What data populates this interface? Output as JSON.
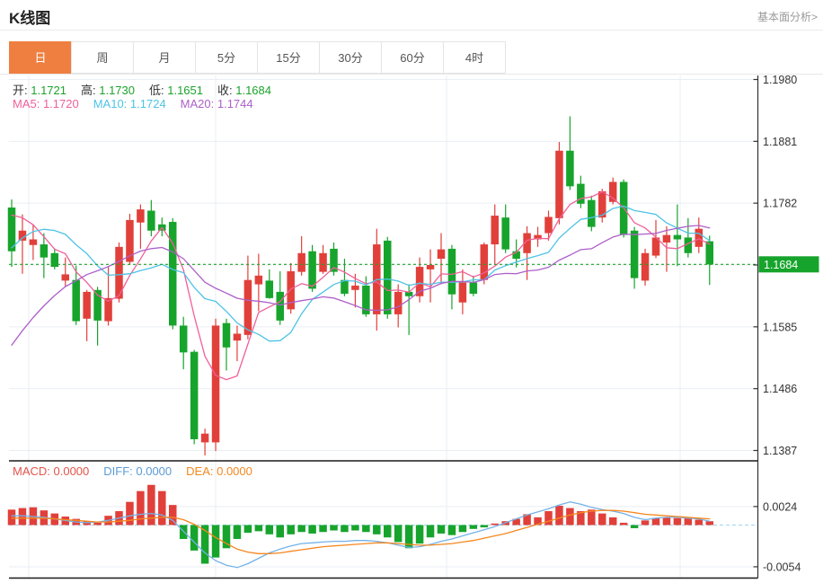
{
  "header": {
    "title": "K线图",
    "link": "基本面分析>"
  },
  "tabs": {
    "items": [
      "日",
      "周",
      "月",
      "5分",
      "15分",
      "30分",
      "60分",
      "4时"
    ],
    "active_index": 0
  },
  "legend": {
    "ohlc": [
      {
        "label": "开:",
        "value": "1.1721"
      },
      {
        "label": "高:",
        "value": "1.1730"
      },
      {
        "label": "低:",
        "value": "1.1651"
      },
      {
        "label": "收:",
        "value": "1.1684"
      }
    ],
    "ma": [
      {
        "label": "MA5:",
        "value": "1.1720",
        "color": "#f0609a"
      },
      {
        "label": "MA10:",
        "value": "1.1724",
        "color": "#4ec3e6"
      },
      {
        "label": "MA20:",
        "value": "1.1744",
        "color": "#ad5fc9"
      }
    ],
    "macd": [
      {
        "label": "MACD:",
        "value": "0.0000",
        "color": "#e2544b"
      },
      {
        "label": "DIFF:",
        "value": "0.0000",
        "color": "#5b9bd5"
      },
      {
        "label": "DEA:",
        "value": "0.0000",
        "color": "#f5871f"
      }
    ]
  },
  "colors": {
    "up": "#e1403a",
    "down": "#17a42c",
    "ma5": "#f0609a",
    "ma10": "#4ec3e6",
    "ma20": "#ad5fc9",
    "diff_line": "#74b2e8",
    "dea_line": "#f5871f",
    "price_line": "#21a52b",
    "badge_bg": "#17a42c",
    "badge_text": "#ffffff",
    "grid": "#e9eef4",
    "axis_dark": "#333333",
    "tick_text": "#333333",
    "value_green": "#1ba32b",
    "tab_active": "#ee7f40",
    "zero_dash": "#9fd4ef"
  },
  "chart_data": {
    "type": "candlestick",
    "title": "K线图",
    "y_axis": {
      "ticks": [
        "1.1980",
        "1.1881",
        "1.1782",
        "1.1684",
        "1.1585",
        "1.1486",
        "1.1387"
      ],
      "range": [
        1.1387,
        1.198
      ]
    },
    "price_marker": {
      "label": "1.1684",
      "value": 1.1684
    },
    "candles_ohlc": [
      [
        1.1775,
        1.1788,
        1.168,
        1.1705
      ],
      [
        1.1722,
        1.1764,
        1.1669,
        1.1738
      ],
      [
        1.1715,
        1.1748,
        1.1691,
        1.1724
      ],
      [
        1.1716,
        1.1734,
        1.1662,
        1.1695
      ],
      [
        1.1702,
        1.1709,
        1.1676,
        1.168
      ],
      [
        1.1658,
        1.1695,
        1.1648,
        1.1668
      ],
      [
        1.1659,
        1.1682,
        1.1587,
        1.1593
      ],
      [
        1.1597,
        1.1643,
        1.1561,
        1.164
      ],
      [
        1.1643,
        1.1648,
        1.1554,
        1.1594
      ],
      [
        1.1593,
        1.168,
        1.1586,
        1.163
      ],
      [
        1.1629,
        1.1719,
        1.1623,
        1.1712
      ],
      [
        1.1688,
        1.1765,
        1.1683,
        1.1755
      ],
      [
        1.1751,
        1.178,
        1.1709,
        1.1772
      ],
      [
        1.177,
        1.1787,
        1.1729,
        1.1738
      ],
      [
        1.1748,
        1.1759,
        1.1729,
        1.1738
      ],
      [
        1.1752,
        1.1758,
        1.158,
        1.1586
      ],
      [
        1.1586,
        1.16,
        1.1516,
        1.1543
      ],
      [
        1.1544,
        1.1547,
        1.1396,
        1.1404
      ],
      [
        1.1399,
        1.1421,
        1.1378,
        1.1413
      ],
      [
        1.1399,
        1.1597,
        1.1385,
        1.1586
      ],
      [
        1.159,
        1.1597,
        1.1514,
        1.1551
      ],
      [
        1.1562,
        1.1586,
        1.1529,
        1.1573
      ],
      [
        1.1571,
        1.1698,
        1.1564,
        1.1659
      ],
      [
        1.1652,
        1.1701,
        1.1609,
        1.1666
      ],
      [
        1.1658,
        1.1676,
        1.1629,
        1.163
      ],
      [
        1.164,
        1.1673,
        1.1587,
        1.1594
      ],
      [
        1.1612,
        1.1686,
        1.1605,
        1.1673
      ],
      [
        1.1672,
        1.1729,
        1.1666,
        1.1702
      ],
      [
        1.1705,
        1.1715,
        1.164,
        1.1645
      ],
      [
        1.1672,
        1.1715,
        1.1669,
        1.1702
      ],
      [
        1.1709,
        1.1719,
        1.1666,
        1.1672
      ],
      [
        1.1659,
        1.1693,
        1.1633,
        1.1637
      ],
      [
        1.1643,
        1.1669,
        1.1615,
        1.165
      ],
      [
        1.165,
        1.1665,
        1.16,
        1.1604
      ],
      [
        1.1604,
        1.1741,
        1.1578,
        1.1716
      ],
      [
        1.1722,
        1.1728,
        1.1597,
        1.1604
      ],
      [
        1.1604,
        1.1652,
        1.1583,
        1.164
      ],
      [
        1.164,
        1.1652,
        1.1571,
        1.1633
      ],
      [
        1.1633,
        1.1695,
        1.1623,
        1.168
      ],
      [
        1.1676,
        1.1708,
        1.1623,
        1.1683
      ],
      [
        1.1693,
        1.1734,
        1.1652,
        1.1708
      ],
      [
        1.1709,
        1.1715,
        1.1612,
        1.1636
      ],
      [
        1.1623,
        1.1676,
        1.1604,
        1.1655
      ],
      [
        1.1655,
        1.1666,
        1.1633,
        1.1637
      ],
      [
        1.1659,
        1.1719,
        1.1652,
        1.1716
      ],
      [
        1.1716,
        1.178,
        1.1683,
        1.1762
      ],
      [
        1.1759,
        1.178,
        1.1702,
        1.1708
      ],
      [
        1.1705,
        1.1724,
        1.1679,
        1.1693
      ],
      [
        1.1702,
        1.1745,
        1.1659,
        1.1734
      ],
      [
        1.1724,
        1.1744,
        1.1712,
        1.1731
      ],
      [
        1.1734,
        1.177,
        1.1722,
        1.176
      ],
      [
        1.1758,
        1.188,
        1.1748,
        1.1866
      ],
      [
        1.1866,
        1.1921,
        1.1803,
        1.1809
      ],
      [
        1.1813,
        1.1826,
        1.1774,
        1.1781
      ],
      [
        1.1787,
        1.1794,
        1.1737,
        1.1744
      ],
      [
        1.1759,
        1.1805,
        1.1751,
        1.1801
      ],
      [
        1.1784,
        1.1823,
        1.178,
        1.1816
      ],
      [
        1.1816,
        1.182,
        1.1727,
        1.1731
      ],
      [
        1.1738,
        1.1744,
        1.1645,
        1.1662
      ],
      [
        1.1658,
        1.1709,
        1.165,
        1.1702
      ],
      [
        1.1698,
        1.1755,
        1.1694,
        1.1727
      ],
      [
        1.1719,
        1.1745,
        1.1672,
        1.1731
      ],
      [
        1.1731,
        1.178,
        1.1681,
        1.1724
      ],
      [
        1.1727,
        1.1758,
        1.1695,
        1.1702
      ],
      [
        1.1712,
        1.1759,
        1.1702,
        1.1741
      ],
      [
        1.1721,
        1.173,
        1.1651,
        1.1684
      ]
    ],
    "ma_periods": [
      5,
      10,
      20
    ],
    "ma_seed": [
      1.128,
      1.13,
      1.132,
      1.135,
      1.138,
      1.141,
      1.144,
      1.147,
      1.15,
      1.154,
      1.158,
      1.162,
      1.166,
      1.17,
      1.173,
      1.176,
      1.178,
      1.179,
      1.178
    ],
    "macd_panel": {
      "ticks": [
        "0.0024",
        "-0.0054"
      ],
      "unit": 0.0001,
      "hist": [
        20,
        22,
        23,
        19,
        15,
        11,
        8,
        5,
        3,
        12,
        18,
        30,
        44,
        52,
        44,
        26,
        -18,
        -33,
        -50,
        -42,
        -30,
        -18,
        -10,
        -8,
        -12,
        -16,
        -12,
        -9,
        -11,
        -9,
        -7,
        -9,
        -7,
        -9,
        -12,
        -16,
        -22,
        -30,
        -24,
        -16,
        -11,
        -13,
        -9,
        -5,
        -3,
        2,
        5,
        8,
        14,
        10,
        18,
        25,
        22,
        18,
        20,
        15,
        10,
        3,
        -4,
        6,
        9,
        10,
        9,
        9,
        7,
        5
      ],
      "diff": [
        12,
        12,
        11,
        10,
        8,
        6,
        4,
        3,
        4,
        6,
        9,
        12,
        14,
        15,
        13,
        6,
        -8,
        -22,
        -36,
        -46,
        -52,
        -55,
        -50,
        -43,
        -36,
        -31,
        -27,
        -24,
        -23,
        -22,
        -21,
        -21,
        -20,
        -20,
        -21,
        -23,
        -26,
        -29,
        -28,
        -25,
        -21,
        -18,
        -14,
        -10,
        -6,
        -2,
        3,
        8,
        13,
        17,
        21,
        26,
        30,
        27,
        23,
        20,
        18,
        15,
        10,
        7,
        9,
        10,
        10,
        9,
        8,
        5
      ],
      "dea": [
        9,
        9,
        9,
        9,
        8,
        7,
        6,
        5,
        4,
        4,
        5,
        6,
        8,
        9,
        10,
        10,
        7,
        1,
        -7,
        -16,
        -24,
        -31,
        -35,
        -37,
        -37,
        -36,
        -34,
        -32,
        -30,
        -28,
        -27,
        -26,
        -25,
        -24,
        -23,
        -23,
        -24,
        -25,
        -26,
        -26,
        -25,
        -24,
        -22,
        -20,
        -17,
        -14,
        -11,
        -7,
        -3,
        1,
        5,
        9,
        13,
        16,
        18,
        19,
        19,
        18,
        16,
        14,
        13,
        12,
        11,
        10,
        9,
        8
      ]
    }
  }
}
